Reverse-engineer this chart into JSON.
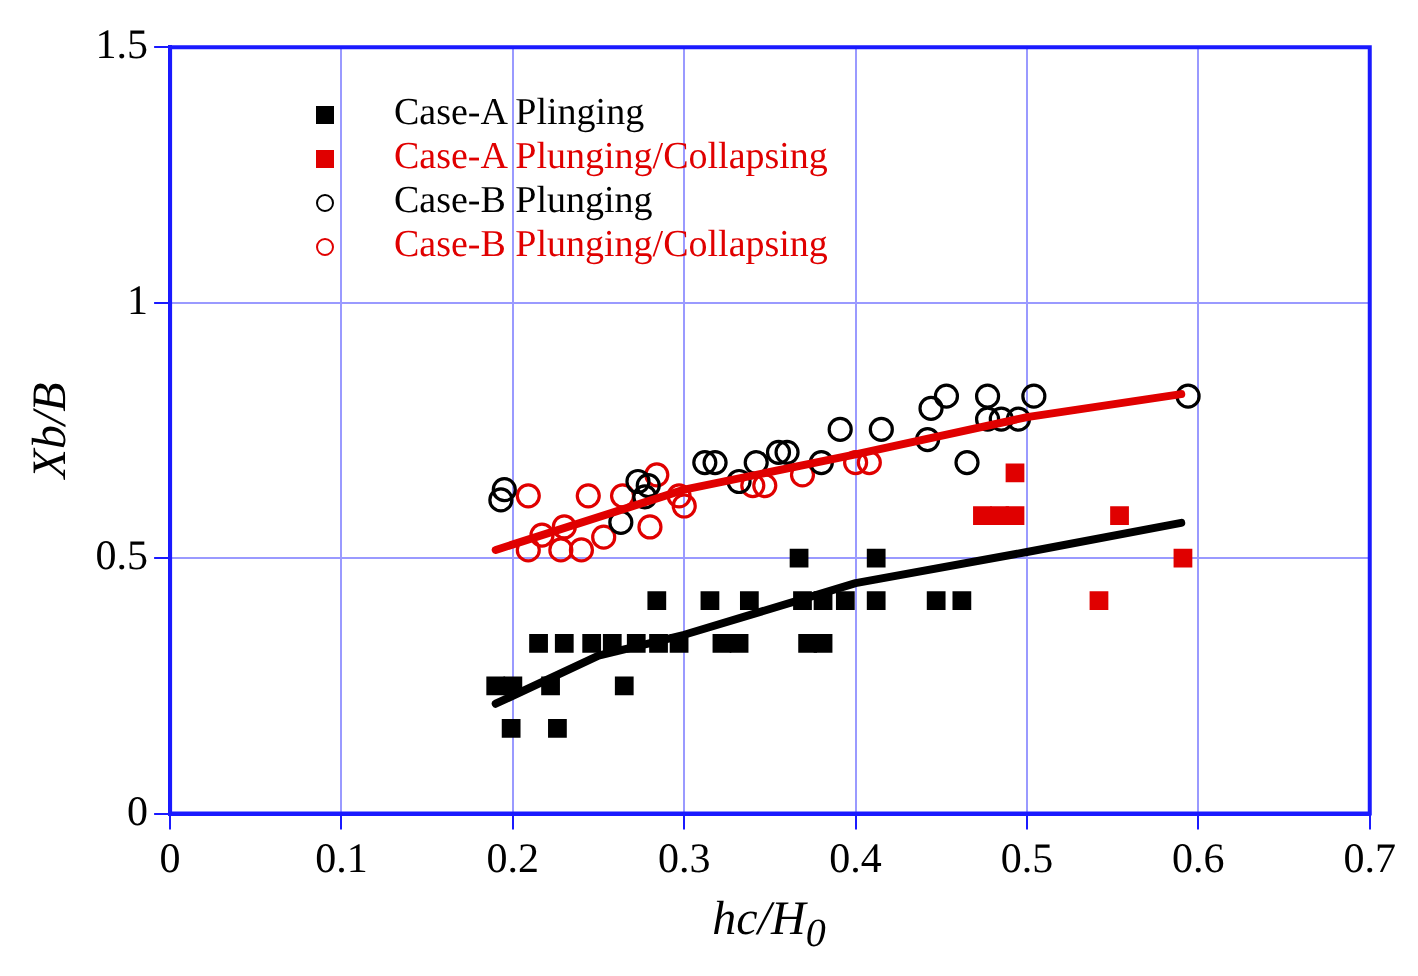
{
  "chart_data": {
    "type": "scatter",
    "xlabel": "hc/H$_{0}$",
    "ylabel": "Xb/B",
    "xlim": [
      0,
      0.7
    ],
    "ylim": [
      0,
      1.5
    ],
    "xticks": [
      0,
      0.1,
      0.2,
      0.3,
      0.4,
      0.5,
      0.6,
      0.7
    ],
    "yticks": [
      0,
      0.5,
      1,
      1.5
    ],
    "grid": true,
    "legend": "top left",
    "series": [
      {
        "name": "Case-A Plinging",
        "marker": "square",
        "color": "#000000",
        "x": [
          0.19,
          0.2,
          0.222,
          0.265,
          0.199,
          0.226,
          0.215,
          0.23,
          0.246,
          0.258,
          0.272,
          0.285,
          0.297,
          0.322,
          0.332,
          0.372,
          0.381,
          0.284,
          0.315,
          0.338,
          0.369,
          0.381,
          0.394,
          0.412,
          0.447,
          0.462,
          0.367,
          0.412
        ],
        "values": [
          0.25,
          0.25,
          0.25,
          0.25,
          0.167,
          0.167,
          0.333,
          0.333,
          0.333,
          0.333,
          0.333,
          0.333,
          0.333,
          0.333,
          0.333,
          0.333,
          0.333,
          0.417,
          0.417,
          0.417,
          0.417,
          0.417,
          0.417,
          0.417,
          0.417,
          0.417,
          0.5,
          0.5
        ]
      },
      {
        "name": "Case-A Plunging/Collapsing",
        "marker": "square",
        "color": "#e00000",
        "x": [
          0.493,
          0.474,
          0.484,
          0.493,
          0.554,
          0.591,
          0.542
        ],
        "values": [
          0.667,
          0.583,
          0.583,
          0.583,
          0.583,
          0.5,
          0.417
        ]
      },
      {
        "name": "Case-B Plunging",
        "marker": "circle",
        "color": "#000000",
        "x": [
          0.193,
          0.195,
          0.263,
          0.277,
          0.279,
          0.273,
          0.312,
          0.318,
          0.332,
          0.342,
          0.355,
          0.36,
          0.38,
          0.391,
          0.415,
          0.442,
          0.444,
          0.453,
          0.465,
          0.477,
          0.477,
          0.485,
          0.495,
          0.504,
          0.594
        ],
        "values": [
          0.614,
          0.634,
          0.57,
          0.62,
          0.642,
          0.65,
          0.687,
          0.687,
          0.65,
          0.687,
          0.707,
          0.707,
          0.687,
          0.752,
          0.752,
          0.732,
          0.793,
          0.817,
          0.687,
          0.817,
          0.772,
          0.772,
          0.772,
          0.817,
          0.817
        ]
      },
      {
        "name": "Case-B Plunging/Collapsing",
        "marker": "circle",
        "color": "#e00000",
        "x": [
          0.209,
          0.209,
          0.217,
          0.228,
          0.23,
          0.24,
          0.244,
          0.253,
          0.264,
          0.28,
          0.284,
          0.297,
          0.3,
          0.34,
          0.347,
          0.369,
          0.4,
          0.408
        ],
        "values": [
          0.622,
          0.516,
          0.545,
          0.516,
          0.561,
          0.516,
          0.622,
          0.541,
          0.622,
          0.561,
          0.663,
          0.622,
          0.602,
          0.642,
          0.642,
          0.663,
          0.687,
          0.687
        ]
      },
      {
        "type": "line",
        "marker": "none",
        "color": "#e00000",
        "x": [
          0.19,
          0.3,
          0.4,
          0.5,
          0.59
        ],
        "values": [
          0.516,
          0.634,
          0.703,
          0.776,
          0.821
        ]
      },
      {
        "type": "line",
        "marker": "none",
        "color": "#000000",
        "x": [
          0.19,
          0.25,
          0.3,
          0.4,
          0.5,
          0.59
        ],
        "values": [
          0.215,
          0.309,
          0.35,
          0.451,
          0.512,
          0.569
        ]
      }
    ]
  }
}
